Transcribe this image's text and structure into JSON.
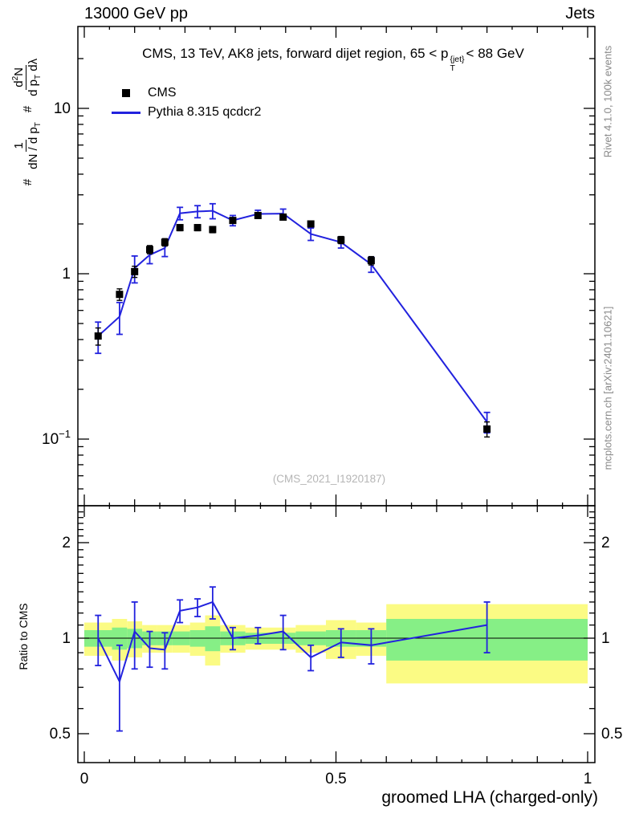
{
  "header": {
    "left": "13000 GeV pp",
    "right": "Jets"
  },
  "main_title": {
    "pre": "CMS, 13 TeV, AK8 jets, forward dijet region, 65 < p",
    "sup": "{jet}",
    "sub": "T",
    "post": "< 88 GeV"
  },
  "legend": {
    "items": [
      {
        "label": "CMS"
      },
      {
        "label": "Pythia 8.315 qcdcr2"
      }
    ]
  },
  "watermark": "(CMS_2021_I1920187)",
  "side_notes": {
    "top": "Rivet 4.1.0,  100k events",
    "bottom": "mcplots.cern.ch [arXiv:2401.10621]"
  },
  "axes": {
    "x_title": "groomed LHA (charged-only)",
    "ratio_y_title": "Ratio to CMS",
    "main_y_label": {
      "hash1": "#",
      "frac1_num": "1",
      "frac1_den_pre": "dN / d p",
      "frac1_den_sub": "T",
      "hash2": "#",
      "frac2_num_pre": "d",
      "frac2_num_sup": "2",
      "frac2_num_post": "N",
      "frac2_den_pre": "d p",
      "frac2_den_sub": "T",
      "frac2_den_post": " dλ"
    }
  },
  "chart_data": {
    "type": "line",
    "title": "CMS, 13 TeV, AK8 jets, forward dijet region, 65 < pT(jet) < 88 GeV",
    "xlabel": "groomed LHA (charged-only)",
    "x_range": [
      0,
      1
    ],
    "legend_position": "top-left",
    "main_panel": {
      "yscale": "log",
      "ylim": [
        0.04,
        30
      ],
      "y_ticks": [
        {
          "v": 10,
          "t": "10"
        },
        {
          "v": 1,
          "t": "1"
        },
        {
          "v": 0.1,
          "t": "10",
          "sup": "−1"
        }
      ]
    },
    "ratio_panel": {
      "yscale": "log",
      "ylim": [
        0.4,
        2.6
      ],
      "ylabel": "Ratio to CMS",
      "y_ticks": [
        {
          "v": 2,
          "t": "2"
        },
        {
          "v": 1,
          "t": "1"
        },
        {
          "v": 0.5,
          "t": "0.5"
        }
      ]
    },
    "x_ticks": [
      {
        "v": 0,
        "t": "0"
      },
      {
        "v": 0.5,
        "t": "0.5"
      },
      {
        "v": 1,
        "t": "1"
      }
    ],
    "series": [
      {
        "name": "CMS",
        "type": "scatter-squares",
        "color": "#000000"
      },
      {
        "name": "Pythia 8.315 qcdcr2",
        "type": "line",
        "color": "#2222de"
      }
    ],
    "colors": {
      "cms": "#000000",
      "pythia": "#2222de",
      "band_yellow": "#fbfb84",
      "band_green": "#86ef86",
      "watermark": "#b5b5b5"
    },
    "bins": [
      {
        "lo": 0.0,
        "hi": 0.055,
        "x": 0.0275,
        "cms": 0.42,
        "cms_err": 0.05,
        "py": 0.42,
        "py_err": 0.09,
        "ratio": 1.0,
        "ratio_err": 0.18,
        "band_yellow": [
          0.88,
          1.12
        ],
        "band_green": [
          0.94,
          1.06
        ]
      },
      {
        "lo": 0.055,
        "hi": 0.085,
        "x": 0.07,
        "cms": 0.75,
        "cms_err": 0.06,
        "py": 0.55,
        "py_err": 0.12,
        "ratio": 0.73,
        "ratio_err": 0.22,
        "band_yellow": [
          0.85,
          1.15
        ],
        "band_green": [
          0.92,
          1.08
        ]
      },
      {
        "lo": 0.085,
        "hi": 0.115,
        "x": 0.1,
        "cms": 1.03,
        "cms_err": 0.08,
        "py": 1.08,
        "py_err": 0.2,
        "ratio": 1.05,
        "ratio_err": 0.25,
        "band_yellow": [
          0.87,
          1.13
        ],
        "band_green": [
          0.93,
          1.07
        ]
      },
      {
        "lo": 0.115,
        "hi": 0.145,
        "x": 0.13,
        "cms": 1.4,
        "cms_err": 0.08,
        "py": 1.3,
        "py_err": 0.15,
        "ratio": 0.93,
        "ratio_err": 0.12,
        "band_yellow": [
          0.9,
          1.1
        ],
        "band_green": [
          0.95,
          1.05
        ]
      },
      {
        "lo": 0.145,
        "hi": 0.175,
        "x": 0.16,
        "cms": 1.55,
        "cms_err": 0.08,
        "py": 1.43,
        "py_err": 0.16,
        "ratio": 0.92,
        "ratio_err": 0.12,
        "band_yellow": [
          0.9,
          1.1
        ],
        "band_green": [
          0.95,
          1.05
        ]
      },
      {
        "lo": 0.175,
        "hi": 0.21,
        "x": 0.19,
        "cms": 1.9,
        "cms_err": 0.08,
        "py": 2.32,
        "py_err": 0.2,
        "ratio": 1.22,
        "ratio_err": 0.1,
        "band_yellow": [
          0.9,
          1.1
        ],
        "band_green": [
          0.95,
          1.05
        ]
      },
      {
        "lo": 0.21,
        "hi": 0.24,
        "x": 0.225,
        "cms": 1.9,
        "cms_err": 0.08,
        "py": 2.38,
        "py_err": 0.2,
        "ratio": 1.25,
        "ratio_err": 0.08,
        "band_yellow": [
          0.88,
          1.12
        ],
        "band_green": [
          0.94,
          1.06
        ]
      },
      {
        "lo": 0.24,
        "hi": 0.27,
        "x": 0.255,
        "cms": 1.85,
        "cms_err": 0.08,
        "py": 2.4,
        "py_err": 0.25,
        "ratio": 1.3,
        "ratio_err": 0.15,
        "band_yellow": [
          0.82,
          1.18
        ],
        "band_green": [
          0.91,
          1.09
        ]
      },
      {
        "lo": 0.27,
        "hi": 0.32,
        "x": 0.295,
        "cms": 2.1,
        "cms_err": 0.08,
        "py": 2.1,
        "py_err": 0.15,
        "ratio": 1.0,
        "ratio_err": 0.08,
        "band_yellow": [
          0.9,
          1.1
        ],
        "band_green": [
          0.95,
          1.05
        ]
      },
      {
        "lo": 0.32,
        "hi": 0.37,
        "x": 0.345,
        "cms": 2.25,
        "cms_err": 0.08,
        "py": 2.3,
        "py_err": 0.12,
        "ratio": 1.02,
        "ratio_err": 0.06,
        "band_yellow": [
          0.92,
          1.08
        ],
        "band_green": [
          0.96,
          1.04
        ]
      },
      {
        "lo": 0.37,
        "hi": 0.42,
        "x": 0.395,
        "cms": 2.2,
        "cms_err": 0.08,
        "py": 2.31,
        "py_err": 0.15,
        "ratio": 1.05,
        "ratio_err": 0.13,
        "band_yellow": [
          0.92,
          1.08
        ],
        "band_green": [
          0.96,
          1.04
        ]
      },
      {
        "lo": 0.42,
        "hi": 0.48,
        "x": 0.45,
        "cms": 2.0,
        "cms_err": 0.08,
        "py": 1.74,
        "py_err": 0.15,
        "ratio": 0.87,
        "ratio_err": 0.08,
        "band_yellow": [
          0.9,
          1.1
        ],
        "band_green": [
          0.95,
          1.05
        ]
      },
      {
        "lo": 0.48,
        "hi": 0.54,
        "x": 0.51,
        "cms": 1.6,
        "cms_err": 0.08,
        "py": 1.55,
        "py_err": 0.12,
        "ratio": 0.97,
        "ratio_err": 0.1,
        "band_yellow": [
          0.86,
          1.14
        ],
        "band_green": [
          0.94,
          1.06
        ]
      },
      {
        "lo": 0.54,
        "hi": 0.6,
        "x": 0.57,
        "cms": 1.2,
        "cms_err": 0.07,
        "py": 1.14,
        "py_err": 0.12,
        "ratio": 0.95,
        "ratio_err": 0.12,
        "band_yellow": [
          0.88,
          1.12
        ],
        "band_green": [
          0.94,
          1.06
        ]
      },
      {
        "lo": 0.6,
        "hi": 1.0,
        "x": 0.8,
        "cms": 0.115,
        "cms_err": 0.012,
        "py": 0.127,
        "py_err": 0.018,
        "ratio": 1.1,
        "ratio_err": 0.2,
        "band_yellow": [
          0.72,
          1.28
        ],
        "band_green": [
          0.85,
          1.15
        ]
      }
    ]
  }
}
